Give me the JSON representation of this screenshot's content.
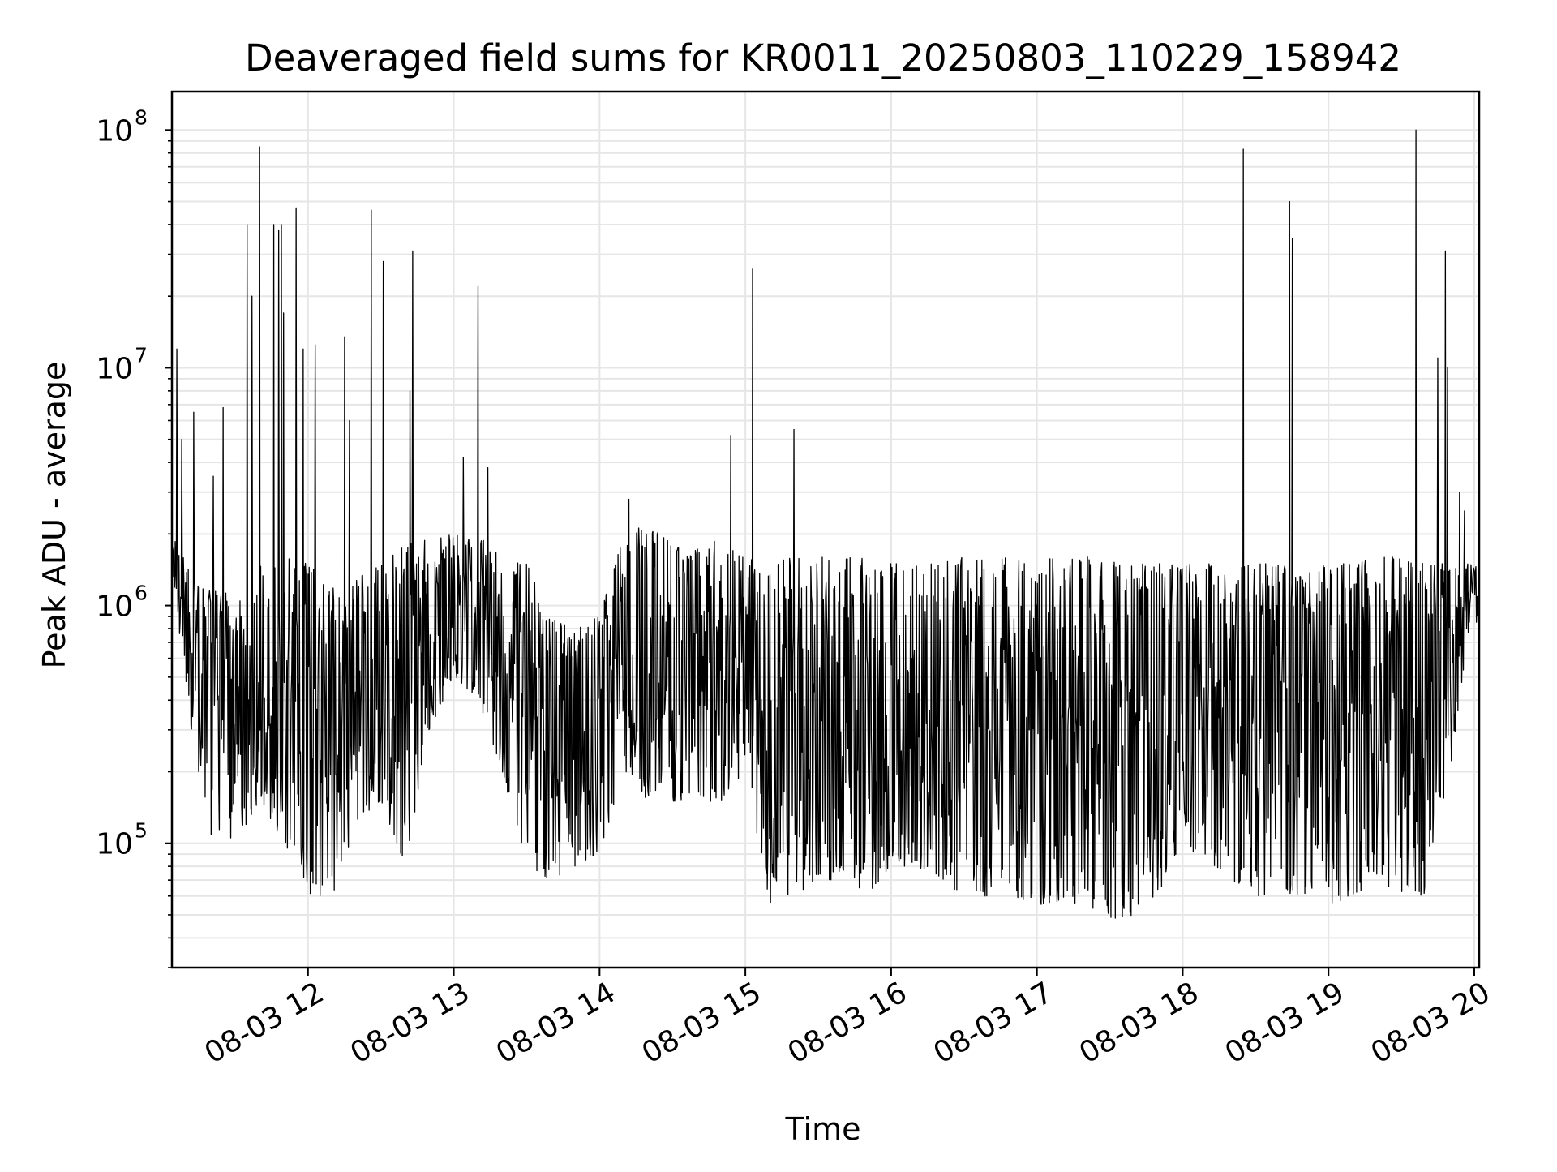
{
  "chart_data": {
    "type": "line",
    "title": "Deaveraged field sums for KR0011_20250803_110229_158942",
    "xlabel": "Time",
    "ylabel": "Peak ADU - average",
    "y_scale": "log",
    "ylim": [
      30000,
      145000000
    ],
    "xlim": [
      "08-03 11:04",
      "08-03 20:02"
    ],
    "x_tick_labels": [
      "08-03 12",
      "08-03 13",
      "08-03 14",
      "08-03 15",
      "08-03 16",
      "08-03 17",
      "08-03 18",
      "08-03 19",
      "08-03 20"
    ],
    "x_tick_times": [
      "2025-08-03T12:00",
      "2025-08-03T13:00",
      "2025-08-03T14:00",
      "2025-08-03T15:00",
      "2025-08-03T16:00",
      "2025-08-03T17:00",
      "2025-08-03T18:00",
      "2025-08-03T19:00",
      "2025-08-03T20:00"
    ],
    "y_tick_labels": [
      {
        "base": "10",
        "exp": "5",
        "value": 100000
      },
      {
        "base": "10",
        "exp": "6",
        "value": 1000000
      },
      {
        "base": "10",
        "exp": "7",
        "value": 10000000
      },
      {
        "base": "10",
        "exp": "8",
        "value": 100000000
      }
    ],
    "grid": true,
    "line_color": "#000000",
    "grid_color": "#e6e6e6",
    "series": [
      {
        "x": [
          "2025-08-03T11:04",
          "2025-08-03T11:10",
          "2025-08-03T11:20",
          "2025-08-03T11:30",
          "2025-08-03T11:40",
          "2025-08-03T11:50",
          "2025-08-03T12:00",
          "2025-08-03T12:10",
          "2025-08-03T12:20",
          "2025-08-03T12:30",
          "2025-08-03T12:40",
          "2025-08-03T12:50",
          "2025-08-03T13:00",
          "2025-08-03T13:10",
          "2025-08-03T13:20",
          "2025-08-03T13:30",
          "2025-08-03T13:40",
          "2025-08-03T13:50",
          "2025-08-03T14:00",
          "2025-08-03T14:10",
          "2025-08-03T14:20",
          "2025-08-03T14:30",
          "2025-08-03T14:40",
          "2025-08-03T14:50",
          "2025-08-03T15:00",
          "2025-08-03T15:10",
          "2025-08-03T15:20",
          "2025-08-03T15:30",
          "2025-08-03T15:40",
          "2025-08-03T15:50",
          "2025-08-03T16:00",
          "2025-08-03T16:10",
          "2025-08-03T16:20",
          "2025-08-03T16:30",
          "2025-08-03T16:40",
          "2025-08-03T16:50",
          "2025-08-03T17:00",
          "2025-08-03T17:10",
          "2025-08-03T17:20",
          "2025-08-03T17:30",
          "2025-08-03T17:40",
          "2025-08-03T17:50",
          "2025-08-03T18:00",
          "2025-08-03T18:10",
          "2025-08-03T18:20",
          "2025-08-03T18:30",
          "2025-08-03T18:40",
          "2025-08-03T18:50",
          "2025-08-03T19:00",
          "2025-08-03T19:10",
          "2025-08-03T19:20",
          "2025-08-03T19:30",
          "2025-08-03T19:40",
          "2025-08-03T19:50",
          "2025-08-03T20:00",
          "2025-08-03T20:02"
        ],
        "lo": [
          1500000,
          400000,
          100000,
          100000,
          150000,
          100000,
          60000,
          60000,
          120000,
          150000,
          80000,
          300000,
          500000,
          400000,
          200000,
          80000,
          70000,
          80000,
          90000,
          200000,
          150000,
          150000,
          150000,
          150000,
          200000,
          55000,
          60000,
          70000,
          70000,
          60000,
          80000,
          80000,
          70000,
          60000,
          60000,
          60000,
          55000,
          55000,
          50000,
          48000,
          50000,
          60000,
          100000,
          80000,
          70000,
          60000,
          60000,
          60000,
          55000,
          60000,
          70000,
          60000,
          60000,
          200000,
          1200000,
          400000
        ],
        "hi": [
          2000000,
          1500000,
          1200000,
          1100000,
          1500000,
          1600000,
          1500000,
          1200000,
          1300000,
          1500000,
          1800000,
          1900000,
          2000000,
          2000000,
          1600000,
          1500000,
          900000,
          800000,
          900000,
          2000000,
          2200000,
          1800000,
          1800000,
          1900000,
          1600000,
          1500000,
          1600000,
          1600000,
          1600000,
          1600000,
          1500000,
          1500000,
          1500000,
          1600000,
          1600000,
          1600000,
          1600000,
          1600000,
          1600000,
          1600000,
          1500000,
          1500000,
          1500000,
          1500000,
          1500000,
          1500000,
          1500000,
          1400000,
          1500000,
          1500000,
          1600000,
          1600000,
          1500000,
          1500000,
          1500000,
          1400000
        ]
      }
    ],
    "spikes": [
      {
        "x": "2025-08-03T11:06",
        "y": 12000000
      },
      {
        "x": "2025-08-03T11:08",
        "y": 5000000
      },
      {
        "x": "2025-08-03T11:13",
        "y": 6500000
      },
      {
        "x": "2025-08-03T11:21",
        "y": 3500000
      },
      {
        "x": "2025-08-03T11:25",
        "y": 6800000
      },
      {
        "x": "2025-08-03T11:35",
        "y": 40000000
      },
      {
        "x": "2025-08-03T11:37",
        "y": 20000000
      },
      {
        "x": "2025-08-03T11:40",
        "y": 85000000
      },
      {
        "x": "2025-08-03T11:46",
        "y": 40000000
      },
      {
        "x": "2025-08-03T11:48",
        "y": 38000000
      },
      {
        "x": "2025-08-03T11:49",
        "y": 40000000
      },
      {
        "x": "2025-08-03T11:50",
        "y": 17000000
      },
      {
        "x": "2025-08-03T11:55",
        "y": 47000000
      },
      {
        "x": "2025-08-03T11:58",
        "y": 12000000
      },
      {
        "x": "2025-08-03T12:03",
        "y": 12500000
      },
      {
        "x": "2025-08-03T12:15",
        "y": 13500000
      },
      {
        "x": "2025-08-03T12:17",
        "y": 6000000
      },
      {
        "x": "2025-08-03T12:26",
        "y": 46000000
      },
      {
        "x": "2025-08-03T12:31",
        "y": 28000000
      },
      {
        "x": "2025-08-03T12:42",
        "y": 8000000
      },
      {
        "x": "2025-08-03T12:43",
        "y": 31000000
      },
      {
        "x": "2025-08-03T13:04",
        "y": 4200000
      },
      {
        "x": "2025-08-03T13:10",
        "y": 22000000
      },
      {
        "x": "2025-08-03T13:14",
        "y": 3800000
      },
      {
        "x": "2025-08-03T14:12",
        "y": 2800000
      },
      {
        "x": "2025-08-03T14:54",
        "y": 5200000
      },
      {
        "x": "2025-08-03T15:03",
        "y": 26000000
      },
      {
        "x": "2025-08-03T15:20",
        "y": 5500000
      },
      {
        "x": "2025-08-03T18:25",
        "y": 83000000
      },
      {
        "x": "2025-08-03T18:44",
        "y": 50000000
      },
      {
        "x": "2025-08-03T18:45",
        "y": 35000000
      },
      {
        "x": "2025-08-03T19:36",
        "y": 100000000
      },
      {
        "x": "2025-08-03T19:45",
        "y": 11000000
      },
      {
        "x": "2025-08-03T19:48",
        "y": 31000000
      },
      {
        "x": "2025-08-03T19:49",
        "y": 10000000
      },
      {
        "x": "2025-08-03T19:54",
        "y": 3000000
      },
      {
        "x": "2025-08-03T19:56",
        "y": 2500000
      }
    ]
  }
}
